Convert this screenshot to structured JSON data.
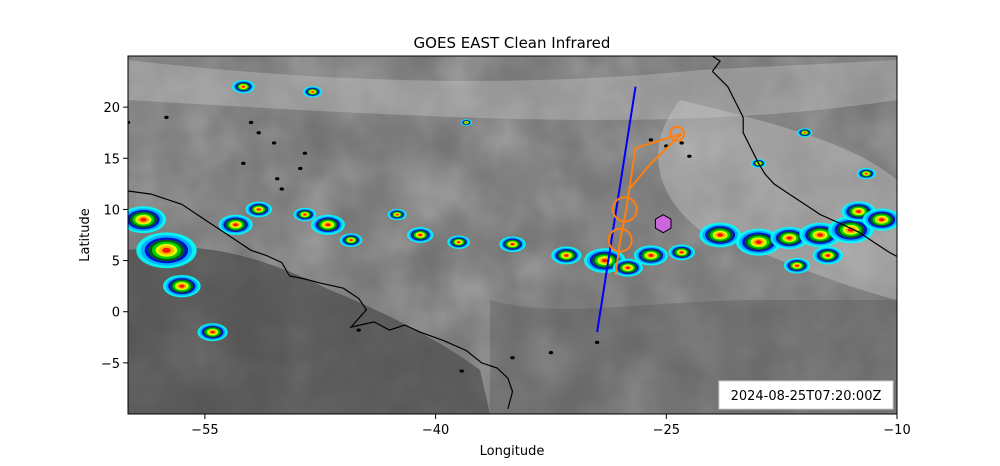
{
  "chart_data": {
    "type": "map",
    "title": "GOES EAST Clean Infrared",
    "xlabel": "Longitude",
    "ylabel": "Latitude",
    "xlim": [
      -60,
      -10
    ],
    "ylim": [
      -10,
      25
    ],
    "xticks": [
      -55,
      -40,
      -25,
      -10
    ],
    "xtick_labels": [
      "−55",
      "−40",
      "−25",
      "−10"
    ],
    "yticks": [
      20,
      15,
      10,
      5,
      0,
      -5
    ],
    "ytick_labels": [
      "20",
      "15",
      "10",
      "5",
      "0",
      "−5"
    ],
    "timestamp": "2024-08-25T07:20:00Z",
    "blue_line": {
      "color": "#0000ff",
      "points": [
        [
          -27.0,
          22.0
        ],
        [
          -29.5,
          -2.0
        ]
      ]
    },
    "orange_track": {
      "color": "#ff7f0e",
      "points": [
        [
          -28.3,
          3.6
        ],
        [
          -28.0,
          7.0
        ],
        [
          -27.6,
          10.0
        ],
        [
          -27.4,
          12.0
        ],
        [
          -27.0,
          16.0
        ],
        [
          -24.0,
          17.4
        ],
        [
          -26.0,
          14.5
        ],
        [
          -27.4,
          12.0
        ]
      ],
      "circles": [
        [
          -27.7,
          10.0
        ],
        [
          -28.0,
          7.0
        ],
        [
          -24.3,
          17.4
        ]
      ]
    },
    "hexagon_marker": {
      "color": "#cc66dd",
      "point": [
        -25.2,
        8.6
      ]
    },
    "ir_colormap": [
      "#c00000",
      "#ff0000",
      "#ffaa00",
      "#ffff00",
      "#00dd00",
      "#006600",
      "#0000cc",
      "#00aaff",
      "#00ffff",
      "#ffffff"
    ]
  }
}
